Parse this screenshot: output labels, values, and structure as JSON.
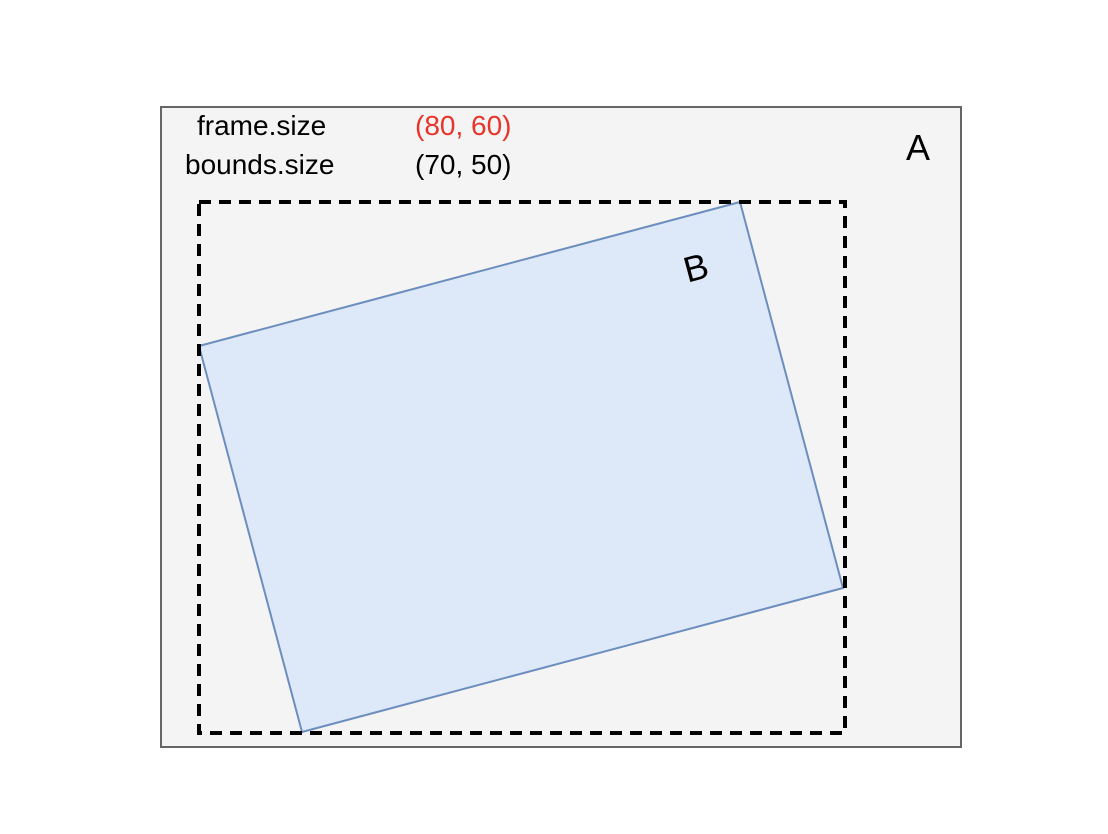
{
  "view_a": {
    "name": "A",
    "fill_color": "#f4f4f4",
    "border_color": "#666666"
  },
  "view_b": {
    "name": "B",
    "fill_color": "#dde8f8",
    "border_color": "#6c8ebf"
  },
  "frame_outline": {
    "style": "dashed",
    "color": "#000000"
  },
  "properties": [
    {
      "label": "frame.size",
      "value": "(80, 60)",
      "value_color": "#e8342a"
    },
    {
      "label": "bounds.size",
      "value": "(70, 50)",
      "value_color": "#000000"
    }
  ]
}
